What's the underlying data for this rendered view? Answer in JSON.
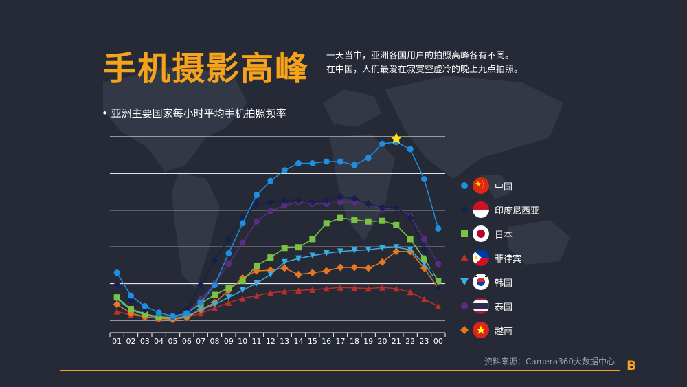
{
  "title": "手机摄影高峰",
  "subtitle": {
    "line1": "一天当中，亚洲各国用户的拍照高峰各有不同。",
    "line2": "在中国，人们最爱在寂寞空虚冷的晚上九点拍照。"
  },
  "bullet": "• 亚洲主要国家每小时平均手机拍照频率",
  "source": "资料来源：Camera360大数据中心",
  "logo": "B",
  "colors": {
    "accent": "#f5a31a",
    "background": "#262a36"
  },
  "chart_data": {
    "type": "line",
    "title": "亚洲主要国家每小时平均手机拍照频率",
    "categories": [
      "01",
      "02",
      "03",
      "04",
      "05",
      "06",
      "07",
      "08",
      "09",
      "10",
      "11",
      "12",
      "13",
      "14",
      "15",
      "16",
      "17",
      "18",
      "19",
      "20",
      "21",
      "22",
      "23",
      "00"
    ],
    "ylim": [
      0,
      5.2
    ],
    "grid": true,
    "annotations": [
      {
        "type": "star",
        "series": "中国",
        "category": "21"
      }
    ],
    "series": [
      {
        "name": "中国",
        "color": "#1e8ee0",
        "marker": "circle",
        "values": [
          1.35,
          0.7,
          0.4,
          0.22,
          0.12,
          0.2,
          0.5,
          1.0,
          1.9,
          2.75,
          3.55,
          3.95,
          4.25,
          4.45,
          4.45,
          4.5,
          4.5,
          4.4,
          4.6,
          5.0,
          5.05,
          4.85,
          4.0,
          2.6
        ]
      },
      {
        "name": "印度尼西亚",
        "color": "#16204a",
        "marker": "diamond",
        "values": [
          1.0,
          0.55,
          0.3,
          0.2,
          0.15,
          0.3,
          1.0,
          1.7,
          2.3,
          2.9,
          3.3,
          3.35,
          3.4,
          3.4,
          3.35,
          3.4,
          3.5,
          3.45,
          3.3,
          3.2,
          3.2,
          2.9,
          2.0,
          0.9
        ]
      },
      {
        "name": "日本",
        "color": "#7cc242",
        "marker": "square",
        "values": [
          0.65,
          0.32,
          0.18,
          0.1,
          0.08,
          0.2,
          0.48,
          0.72,
          0.92,
          1.12,
          1.55,
          1.78,
          2.05,
          2.07,
          2.3,
          2.75,
          2.9,
          2.85,
          2.8,
          2.82,
          2.7,
          2.3,
          1.75,
          1.12
        ]
      },
      {
        "name": "菲律宾",
        "color": "#b8312b",
        "marker": "triangle-up",
        "values": [
          0.25,
          0.15,
          0.1,
          0.05,
          0.05,
          0.08,
          0.2,
          0.35,
          0.5,
          0.62,
          0.7,
          0.78,
          0.82,
          0.85,
          0.87,
          0.9,
          0.93,
          0.92,
          0.9,
          0.93,
          0.9,
          0.8,
          0.6,
          0.4
        ]
      },
      {
        "name": "韩国",
        "color": "#3aaee0",
        "marker": "triangle-down",
        "values": [
          0.6,
          0.3,
          0.15,
          0.08,
          0.05,
          0.12,
          0.3,
          0.45,
          0.65,
          0.85,
          1.05,
          1.3,
          1.65,
          1.75,
          1.83,
          1.9,
          1.95,
          1.98,
          2.0,
          2.05,
          2.07,
          2.0,
          1.6,
          1.05
        ]
      },
      {
        "name": "泰国",
        "color": "#5a2d82",
        "marker": "circle",
        "values": [
          1.0,
          0.55,
          0.3,
          0.2,
          0.1,
          0.2,
          0.6,
          1.05,
          1.6,
          2.2,
          2.8,
          3.1,
          3.25,
          3.35,
          3.3,
          3.3,
          3.35,
          3.35,
          3.3,
          3.15,
          3.2,
          2.95,
          2.3,
          1.6
        ]
      },
      {
        "name": "越南",
        "color": "#e87722",
        "marker": "diamond",
        "values": [
          0.45,
          0.2,
          0.1,
          0.05,
          0.03,
          0.08,
          0.3,
          0.5,
          0.85,
          1.2,
          1.4,
          1.42,
          1.48,
          1.3,
          1.35,
          1.4,
          1.5,
          1.5,
          1.48,
          1.65,
          1.95,
          1.95,
          1.48,
          0.9
        ]
      }
    ]
  },
  "legend": [
    {
      "label": "中国",
      "flag": "china-flag"
    },
    {
      "label": "印度尼西亚",
      "flag": "indonesia-flag"
    },
    {
      "label": "日本",
      "flag": "japan-flag"
    },
    {
      "label": "菲律宾",
      "flag": "philippines-flag"
    },
    {
      "label": "韩国",
      "flag": "korea-flag"
    },
    {
      "label": "泰国",
      "flag": "thailand-flag"
    },
    {
      "label": "越南",
      "flag": "vietnam-flag"
    }
  ]
}
